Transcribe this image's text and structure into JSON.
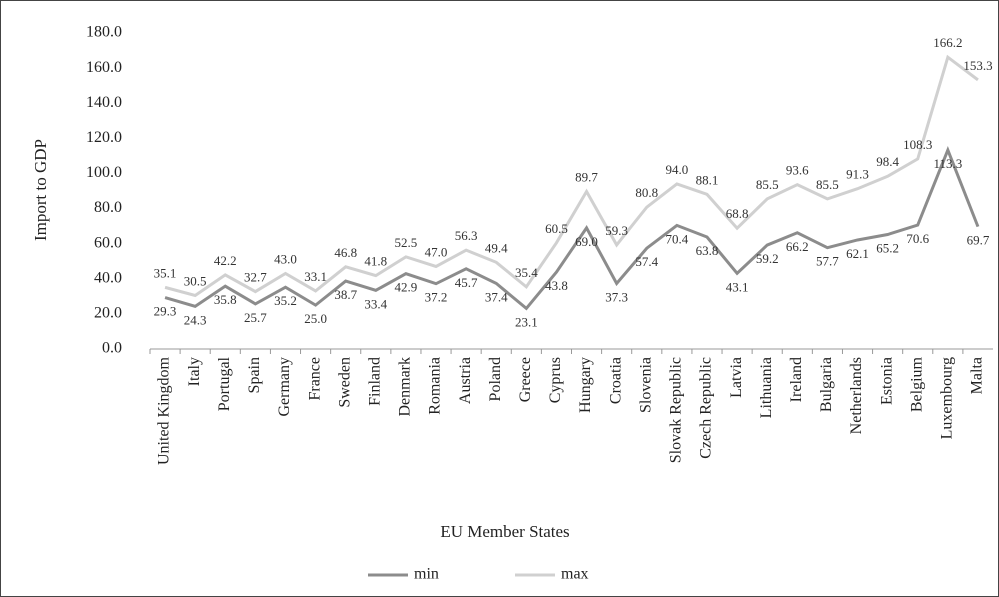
{
  "chart_data": {
    "type": "line",
    "x_label": "EU Member States",
    "y_label": "Import to GDP",
    "categories": [
      "United Kingdom",
      "Italy",
      "Portugal",
      "Spain",
      "Germany",
      "France",
      "Sweden",
      "Finland",
      "Denmark",
      "Romania",
      "Austria",
      "Poland",
      "Greece",
      "Cyprus",
      "Hungary",
      "Croatia",
      "Slovenia",
      "Slovak Republic",
      "Czech Republic",
      "Latvia",
      "Lithuania",
      "Ireland",
      "Bulgaria",
      "Netherlands",
      "Estonia",
      "Belgium",
      "Luxembourg",
      "Malta"
    ],
    "series": [
      {
        "name": "min",
        "color": "#8c8c8c",
        "values": [
          29.3,
          24.3,
          35.8,
          25.7,
          35.2,
          25.0,
          38.7,
          33.4,
          42.9,
          37.2,
          45.7,
          37.4,
          23.1,
          43.8,
          69.0,
          37.3,
          57.4,
          70.4,
          63.8,
          43.1,
          59.2,
          66.2,
          57.7,
          62.1,
          65.2,
          70.6,
          113.3,
          69.7
        ],
        "value_labels": [
          "29.3",
          "24.3",
          "35.8",
          "25.7",
          "35.2",
          "25.0",
          "38.7",
          "33.4",
          "42.9",
          "37.2",
          "45.7",
          "37.4",
          "23.1",
          "43.8",
          "69.0",
          "37.3",
          "57.4",
          "70.4",
          "63.8",
          "43.1",
          "59.2",
          "66.2",
          "57.7",
          "62.1",
          "65.2",
          "70.6",
          "113.3",
          "69.7"
        ]
      },
      {
        "name": "max",
        "color": "#d0d0d0",
        "values": [
          35.1,
          30.5,
          42.2,
          32.7,
          43.0,
          33.1,
          46.8,
          41.8,
          52.5,
          47.0,
          56.3,
          49.4,
          35.4,
          60.5,
          89.7,
          59.3,
          80.8,
          94.0,
          88.1,
          68.8,
          85.5,
          93.6,
          85.5,
          91.3,
          98.4,
          108.3,
          166.2,
          153.3
        ],
        "value_labels": [
          "35.1",
          "30.5",
          "42.2",
          "32.7",
          "43.0",
          "33.1",
          "46.8",
          "41.8",
          "52.5",
          "47.0",
          "56.3",
          "49.4",
          "35.4",
          "60.5",
          "89.7",
          "59.3",
          "80.8",
          "94.0",
          "88.1",
          "68.8",
          "85.5",
          "93.6",
          "85.5",
          "91.3",
          "98.4",
          "108.3",
          "166.2",
          "153.3"
        ]
      }
    ],
    "ylim": [
      0,
      180
    ],
    "yticks": [
      {
        "value": 0,
        "label": "0.0"
      },
      {
        "value": 20,
        "label": "20.0"
      },
      {
        "value": 40,
        "label": "40.0"
      },
      {
        "value": 60,
        "label": "60.0"
      },
      {
        "value": 80,
        "label": "80.0"
      },
      {
        "value": 100,
        "label": "100.0"
      },
      {
        "value": 120,
        "label": "120.0"
      },
      {
        "value": 140,
        "label": "140.0"
      },
      {
        "value": 160,
        "label": "160.0"
      },
      {
        "value": 180,
        "label": "180.0"
      }
    ],
    "legend": "bottom"
  }
}
